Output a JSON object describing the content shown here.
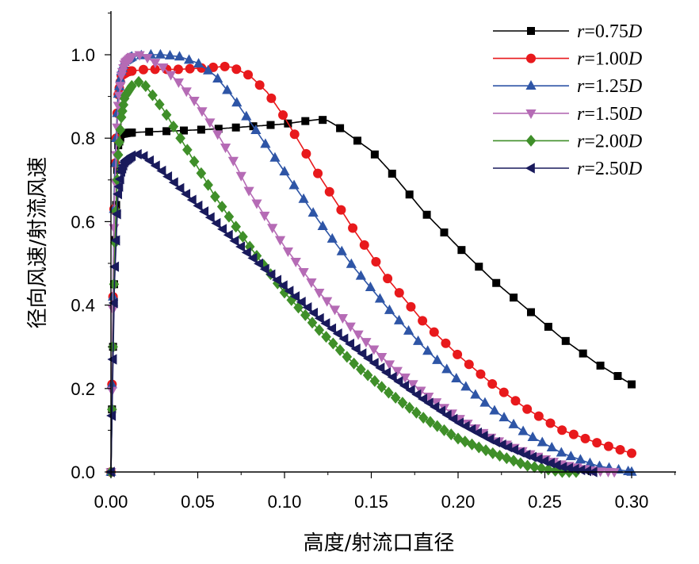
{
  "chart_data": {
    "type": "line",
    "xlabel": "高度/射流口直径",
    "ylabel": "径向风速/射流风速",
    "xlim": [
      0,
      0.3
    ],
    "ylim": [
      0,
      1.1
    ],
    "x_ticks": [
      "0.00",
      "0.05",
      "0.10",
      "0.15",
      "0.20",
      "0.25",
      "0.30"
    ],
    "y_ticks": [
      "0.0",
      "0.2",
      "0.4",
      "0.6",
      "0.8",
      "1.0"
    ],
    "legend_position": "top-right",
    "series": [
      {
        "name_var": "r",
        "name_value": "=0.75",
        "name_unit": "D",
        "color": "#000000",
        "marker": "square",
        "x": [
          0,
          0.002,
          0.004,
          0.006,
          0.01,
          0.02,
          0.04,
          0.06,
          0.08,
          0.1,
          0.11,
          0.12,
          0.125,
          0.13,
          0.14,
          0.15,
          0.16,
          0.17,
          0.18,
          0.2,
          0.22,
          0.24,
          0.26,
          0.28,
          0.3
        ],
        "y": [
          0,
          0.5,
          0.78,
          0.81,
          0.813,
          0.815,
          0.818,
          0.822,
          0.828,
          0.834,
          0.84,
          0.845,
          0.842,
          0.83,
          0.8,
          0.77,
          0.725,
          0.675,
          0.625,
          0.54,
          0.46,
          0.39,
          0.32,
          0.26,
          0.21
        ],
        "step": 0.01
      },
      {
        "name_var": "r",
        "name_value": "=1.00",
        "name_unit": "D",
        "color": "#e8191c",
        "marker": "circle",
        "x": [
          0,
          0.002,
          0.004,
          0.006,
          0.01,
          0.02,
          0.04,
          0.06,
          0.065,
          0.07,
          0.08,
          0.09,
          0.1,
          0.11,
          0.12,
          0.14,
          0.16,
          0.18,
          0.2,
          0.22,
          0.24,
          0.26,
          0.28,
          0.3
        ],
        "y": [
          0,
          0.7,
          0.9,
          0.95,
          0.96,
          0.965,
          0.965,
          0.97,
          0.972,
          0.97,
          0.95,
          0.91,
          0.85,
          0.78,
          0.71,
          0.58,
          0.46,
          0.36,
          0.28,
          0.21,
          0.15,
          0.1,
          0.07,
          0.045
        ],
        "step": 0.0067
      },
      {
        "name_var": "r",
        "name_value": "=1.25",
        "name_unit": "D",
        "color": "#2e55a6",
        "marker": "triangle-up",
        "x": [
          0,
          0.002,
          0.004,
          0.006,
          0.008,
          0.012,
          0.02,
          0.03,
          0.04,
          0.05,
          0.06,
          0.07,
          0.08,
          0.1,
          0.12,
          0.14,
          0.16,
          0.18,
          0.2,
          0.22,
          0.24,
          0.26,
          0.28,
          0.3
        ],
        "y": [
          0,
          0.7,
          0.9,
          0.96,
          0.985,
          0.995,
          1.0,
          1.0,
          0.995,
          0.98,
          0.95,
          0.9,
          0.84,
          0.72,
          0.6,
          0.49,
          0.39,
          0.3,
          0.22,
          0.15,
          0.09,
          0.045,
          0.015,
          0.0
        ],
        "step": 0.0055
      },
      {
        "name_var": "r",
        "name_value": "=1.50",
        "name_unit": "D",
        "color": "#b56bb5",
        "marker": "triangle-down",
        "x": [
          0,
          0.002,
          0.004,
          0.006,
          0.008,
          0.012,
          0.016,
          0.02,
          0.03,
          0.04,
          0.05,
          0.06,
          0.07,
          0.08,
          0.1,
          0.12,
          0.14,
          0.16,
          0.18,
          0.2,
          0.22,
          0.24,
          0.26,
          0.28,
          0.29
        ],
        "y": [
          0,
          0.65,
          0.87,
          0.95,
          0.98,
          0.995,
          1.0,
          0.995,
          0.97,
          0.93,
          0.88,
          0.82,
          0.75,
          0.67,
          0.54,
          0.43,
          0.34,
          0.26,
          0.19,
          0.13,
          0.08,
          0.045,
          0.018,
          0.002,
          0.0
        ],
        "step": 0.0045
      },
      {
        "name_var": "r",
        "name_value": "=2.00",
        "name_unit": "D",
        "color": "#3f8f29",
        "marker": "diamond",
        "x": [
          0,
          0.002,
          0.004,
          0.006,
          0.008,
          0.012,
          0.016,
          0.02,
          0.03,
          0.04,
          0.05,
          0.06,
          0.08,
          0.1,
          0.12,
          0.14,
          0.16,
          0.18,
          0.2,
          0.22,
          0.24,
          0.26,
          0.268
        ],
        "y": [
          0,
          0.5,
          0.75,
          0.85,
          0.9,
          0.925,
          0.935,
          0.925,
          0.87,
          0.8,
          0.73,
          0.66,
          0.54,
          0.43,
          0.34,
          0.26,
          0.19,
          0.13,
          0.08,
          0.045,
          0.015,
          0.0,
          0.0
        ],
        "step": 0.004
      },
      {
        "name_var": "r",
        "name_value": "=2.50",
        "name_unit": "D",
        "color": "#191a5c",
        "marker": "triangle-left",
        "x": [
          0,
          0.002,
          0.004,
          0.006,
          0.008,
          0.012,
          0.016,
          0.02,
          0.03,
          0.04,
          0.06,
          0.08,
          0.1,
          0.12,
          0.14,
          0.16,
          0.18,
          0.2,
          0.22,
          0.24,
          0.26,
          0.278
        ],
        "y": [
          0,
          0.45,
          0.66,
          0.72,
          0.745,
          0.758,
          0.762,
          0.755,
          0.72,
          0.68,
          0.6,
          0.52,
          0.445,
          0.37,
          0.3,
          0.235,
          0.175,
          0.12,
          0.075,
          0.04,
          0.012,
          0.0
        ],
        "step": 0.0035
      }
    ]
  }
}
